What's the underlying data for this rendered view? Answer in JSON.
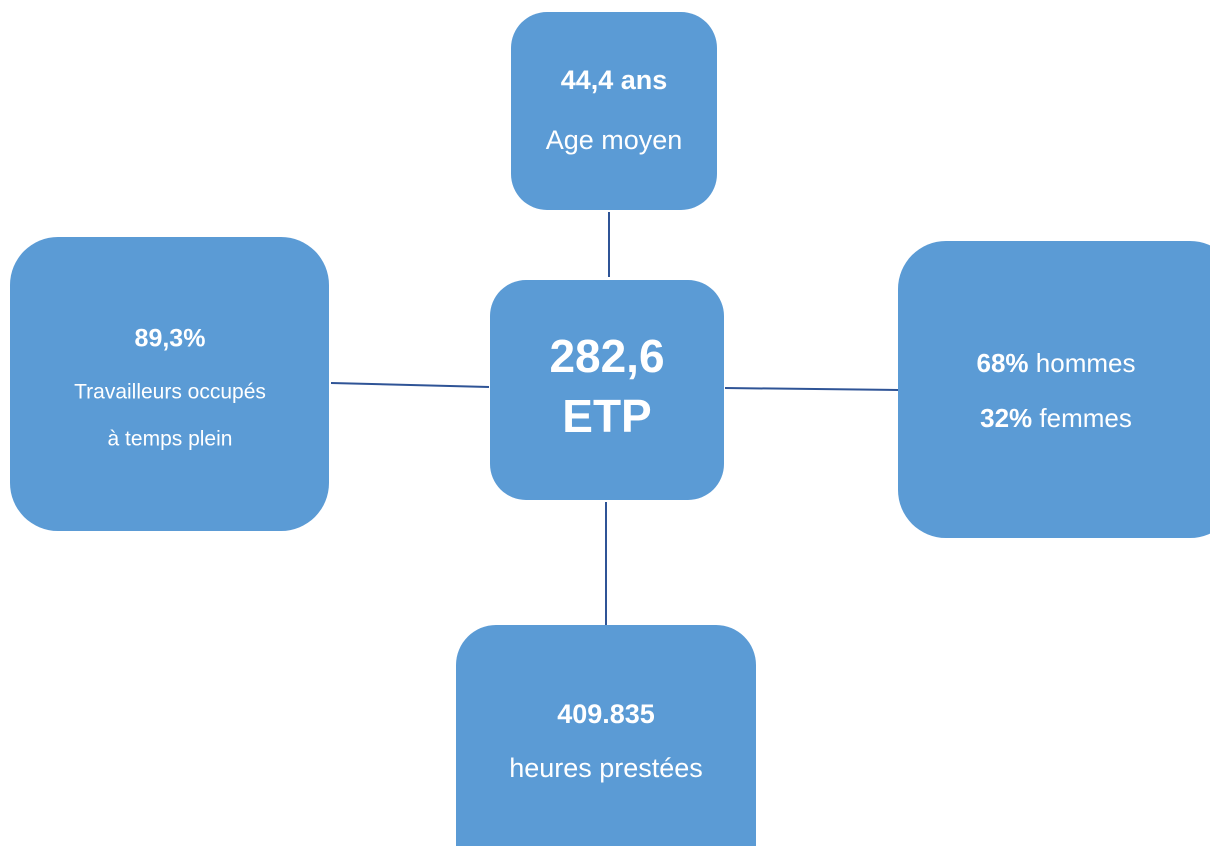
{
  "nodes": [
    {
      "value": "282,6",
      "label": "ETP"
    },
    {
      "value": "44,4 ans",
      "label": "Age moyen"
    },
    {
      "value": "89,3%",
      "label": [
        "Travailleurs occupés",
        "à temps plein"
      ]
    },
    {
      "rows": [
        {
          "value": "68%",
          "label": "hommes"
        },
        {
          "value": "32%",
          "label": "femmes"
        }
      ]
    },
    {
      "value": "409.835",
      "label": "heures prestées"
    }
  ]
}
